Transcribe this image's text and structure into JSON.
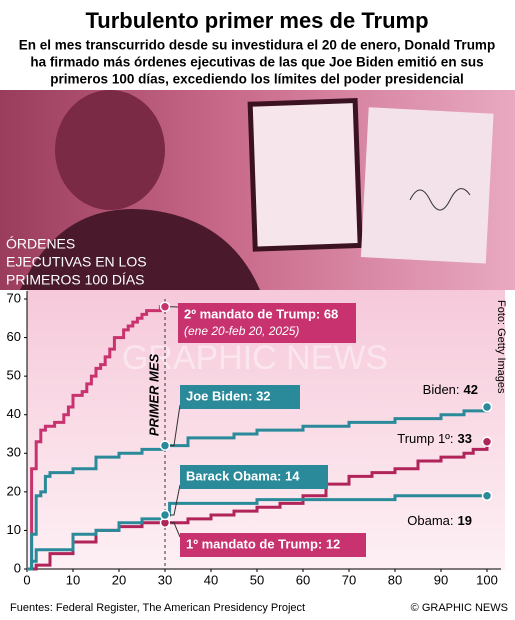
{
  "chart_data": {
    "type": "step-line",
    "title": "Turbulento primer mes de Trump",
    "subtitle": [
      "En el mes transcurrido desde su investidura el 20 de enero, Donald Trump",
      "ha firmado más órdenes ejecutivas de las que Joe Biden emitió en sus",
      "primeros 100 días, excediendo los límites del poder presidencial"
    ],
    "photo_label": [
      "ÓRDENES",
      "EJECUTIVAS EN LOS",
      "PRIMEROS 100 DÍAS"
    ],
    "photo_credit": "Foto: Getty Images",
    "period_label": "PRIMER MES",
    "period_end": 30,
    "xlim": [
      0,
      100
    ],
    "xticks": [
      0,
      10,
      20,
      30,
      40,
      50,
      60,
      70,
      80,
      90,
      100
    ],
    "ylim": [
      0,
      70
    ],
    "yticks": [
      0,
      10,
      20,
      30,
      40,
      50,
      60,
      70
    ],
    "series": [
      {
        "color": "#c8326e",
        "x": [
          0,
          1,
          2,
          3,
          4,
          6,
          8,
          9,
          10,
          12,
          13,
          14,
          15,
          16,
          17,
          18,
          19,
          21,
          22,
          23,
          24,
          25,
          26,
          29,
          30
        ],
        "y": [
          0,
          26,
          33,
          36,
          37,
          38,
          40,
          42,
          45,
          46,
          48,
          50,
          52,
          53,
          55,
          57,
          60,
          62,
          63,
          64,
          65,
          66,
          67,
          68,
          68
        ]
      },
      {
        "color": "#2a8a9a",
        "x": [
          0,
          1,
          2,
          3,
          4,
          5,
          10,
          15,
          20,
          25,
          30,
          35,
          45,
          50,
          60,
          70,
          80,
          90,
          95,
          100
        ],
        "y": [
          0,
          9,
          19,
          20,
          24,
          25,
          26,
          29,
          30,
          31,
          32,
          34,
          35,
          36,
          37,
          38,
          39,
          40,
          41,
          42
        ]
      },
      {
        "color": "#b0245a",
        "x": [
          0,
          2,
          5,
          10,
          15,
          20,
          25,
          30,
          35,
          40,
          45,
          50,
          55,
          60,
          65,
          70,
          75,
          80,
          85,
          90,
          95,
          97,
          100
        ],
        "y": [
          0,
          1,
          4,
          7,
          10,
          11,
          12,
          12,
          13,
          14,
          15,
          16,
          17,
          19,
          22,
          24,
          25,
          26,
          28,
          29,
          30,
          31,
          33
        ]
      },
      {
        "color": "#2a8a9a",
        "x": [
          0,
          1,
          2,
          5,
          10,
          15,
          20,
          25,
          30,
          31,
          50,
          80,
          100
        ],
        "y": [
          0,
          2,
          5,
          5,
          9,
          10,
          12,
          13,
          14,
          17,
          18,
          19,
          19
        ]
      }
    ],
    "annotations": [
      {
        "text": "2º mandato de Trump: 68",
        "note": "(ene 20-feb 20, 2025)",
        "color": "#c8326e"
      },
      {
        "text": "Joe Biden: 32",
        "color": "#2a8a9a"
      },
      {
        "text": "Barack Obama: 14",
        "color": "#2a8a9a"
      },
      {
        "text": "1º mandato de Trump: 12",
        "color": "#c8326e"
      }
    ],
    "end_labels": [
      "Biden:",
      "Trump 1º:",
      "Obama:"
    ],
    "watermark": "GRAPHIC NEWS",
    "source": "Fuentes: Federal Register, The American Presidency Project",
    "copyright": "© GRAPHIC NEWS"
  }
}
